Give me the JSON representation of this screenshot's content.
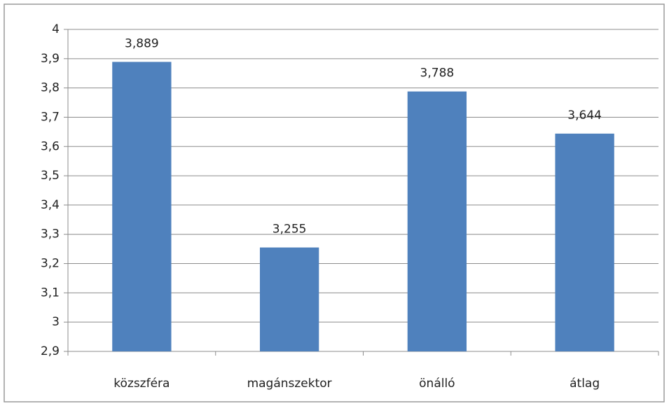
{
  "chart_data": {
    "type": "bar",
    "categories": [
      "közszféra",
      "magánszektor",
      "önálló",
      "átlag"
    ],
    "values": [
      3.889,
      3.255,
      3.788,
      3.644
    ],
    "value_labels": [
      "3,889",
      "3,255",
      "3,788",
      "3,644"
    ],
    "color": "#4f81bd",
    "ylim": [
      2.9,
      4
    ],
    "yticks": [
      {
        "value": 2.9,
        "label": "2,9"
      },
      3,
      {
        "value": 3.1,
        "label": "3,1"
      },
      {
        "value": 3.2,
        "label": "3,2"
      },
      {
        "value": 3.3,
        "label": "3,3"
      },
      {
        "value": 3.4,
        "label": "3,4"
      },
      {
        "value": 3.5,
        "label": "3,5"
      },
      {
        "value": 3.6,
        "label": "3,6"
      },
      {
        "value": 3.7,
        "label": "3,7"
      },
      {
        "value": 3.8,
        "label": "3,8"
      },
      {
        "value": 3.9,
        "label": "3,9"
      },
      4
    ],
    "grid": true
  }
}
